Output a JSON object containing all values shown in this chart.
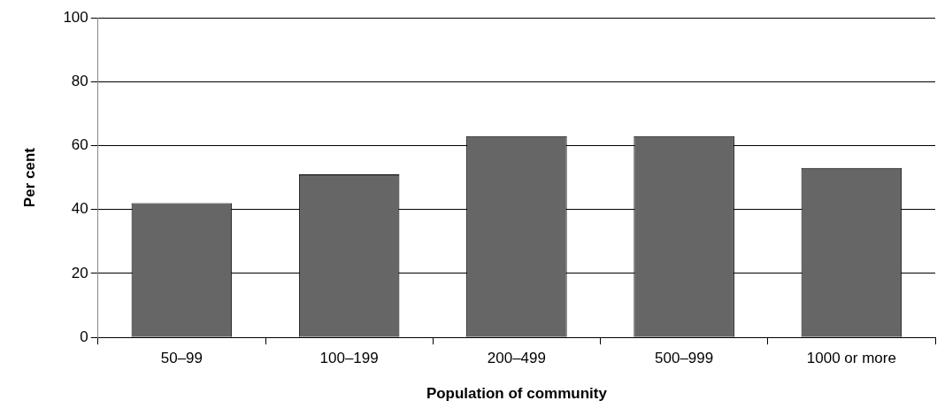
{
  "chart_data": {
    "type": "bar",
    "xlabel": "Population of community",
    "ylabel": "Per cent",
    "categories": [
      "50–99",
      "100–199",
      "200–499",
      "500–999",
      "1000 or more"
    ],
    "values": [
      42,
      51,
      63,
      63,
      53
    ],
    "color": "#666666",
    "ylim": [
      0,
      100
    ],
    "yticks": [
      0,
      20,
      40,
      60,
      80,
      100
    ],
    "grid": "y",
    "legend": false
  }
}
